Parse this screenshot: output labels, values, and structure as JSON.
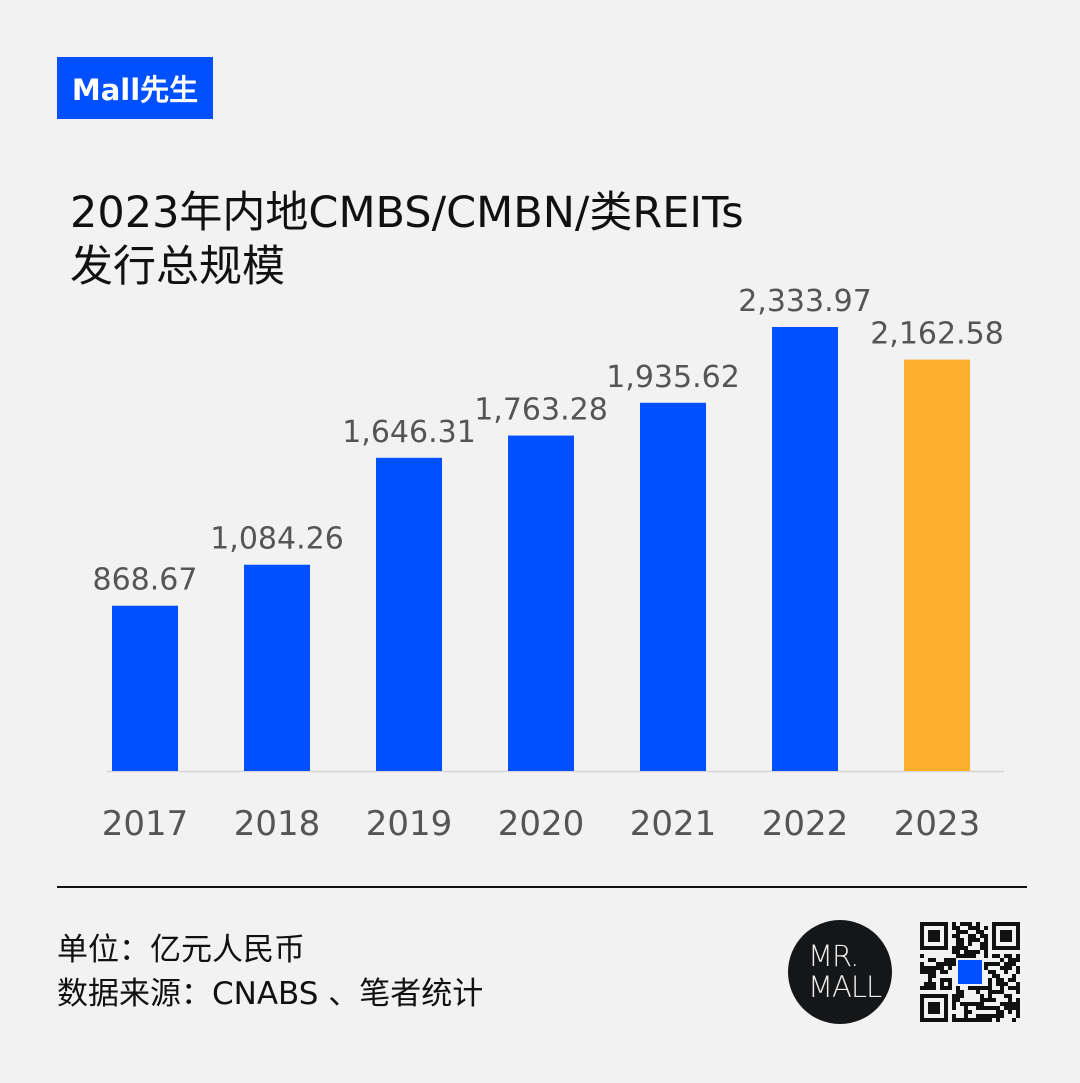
{
  "brand": {
    "label": "Mall先生",
    "color": "#0050ff"
  },
  "title": {
    "line1": "2023年内地CMBS/CMBN/类REITs",
    "line2": "发行总规模"
  },
  "chart_data": {
    "type": "bar",
    "categories": [
      "2017",
      "2018",
      "2019",
      "2020",
      "2021",
      "2022",
      "2023"
    ],
    "values": [
      868.67,
      1084.26,
      1646.31,
      1763.28,
      1935.62,
      2333.97,
      2162.58
    ],
    "data_labels": [
      "868.67",
      "1,084.26",
      "1,646.31",
      "1,763.28",
      "1,935.62",
      "2,333.97",
      "2,162.58"
    ],
    "colors": [
      "#0050ff",
      "#0050ff",
      "#0050ff",
      "#0050ff",
      "#0050ff",
      "#0050ff",
      "#fbb02d"
    ],
    "ylim": [
      0,
      2333.97
    ],
    "grid": false,
    "xlabel": "",
    "ylabel": ""
  },
  "footer": {
    "unit": "单位：亿元人民币",
    "source": "数据来源：CNABS 、笔者统计"
  },
  "logo": {
    "line1": "MR.",
    "line2": "MALL"
  }
}
